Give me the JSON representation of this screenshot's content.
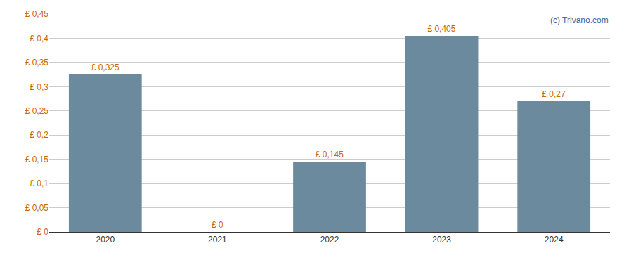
{
  "chart_data": {
    "type": "bar",
    "categories": [
      "2020",
      "2021",
      "2022",
      "2023",
      "2024"
    ],
    "values": [
      0.325,
      0.0,
      0.145,
      0.405,
      0.27
    ],
    "value_labels": [
      "£ 0,325",
      "£ 0",
      "£ 0,145",
      "£ 0,405",
      "£ 0,27"
    ],
    "data_labels": true,
    "color": "#6b8a9e",
    "ylim": [
      0,
      0.45
    ],
    "yticks": [
      {
        "value": 0,
        "label": "£ 0"
      },
      {
        "value": 0.05,
        "label": "£ 0,05"
      },
      {
        "value": 0.1,
        "label": "£ 0,1"
      },
      {
        "value": 0.15,
        "label": "£ 0,15"
      },
      {
        "value": 0.2,
        "label": "£ 0,2"
      },
      {
        "value": 0.25,
        "label": "£ 0,25"
      },
      {
        "value": 0.3,
        "label": "£ 0,3"
      },
      {
        "value": 0.35,
        "label": "£ 0,35"
      },
      {
        "value": 0.4,
        "label": "£ 0,4"
      },
      {
        "value": 0.45,
        "label": "£ 0,45"
      }
    ],
    "grid": true,
    "annotations": [
      "(c) Trivano.com"
    ]
  }
}
